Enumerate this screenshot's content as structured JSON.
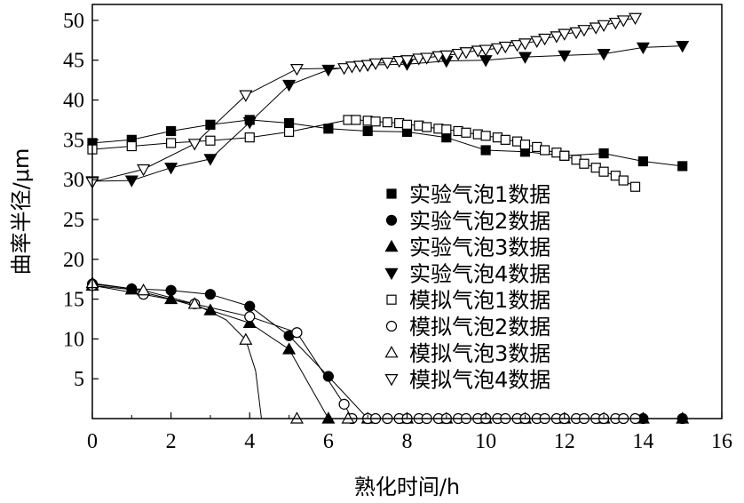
{
  "chart_data": {
    "type": "scatter",
    "xlabel": "熟化时间/h",
    "ylabel": "曲率半径/μm",
    "xlim": [
      0,
      16
    ],
    "ylim": [
      0,
      52
    ],
    "xticks": [
      "0",
      "2",
      "4",
      "6",
      "8",
      "10",
      "12",
      "14",
      "16"
    ],
    "yticks": [
      "5",
      "10",
      "15",
      "20",
      "25",
      "30",
      "35",
      "40",
      "45",
      "50"
    ],
    "legend_position": "right",
    "series": [
      {
        "name": "实验气泡1数据",
        "marker": "square-filled",
        "x": [
          0,
          1,
          2,
          3,
          4,
          5,
          6,
          7,
          8,
          9,
          10,
          11,
          12,
          13,
          14,
          15
        ],
        "y": [
          34.6,
          35.0,
          36.1,
          36.9,
          37.5,
          37.1,
          36.4,
          36.1,
          36.0,
          35.3,
          33.7,
          33.5,
          33.0,
          33.3,
          32.3,
          31.7
        ]
      },
      {
        "name": "实验气泡2数据",
        "marker": "circle-filled",
        "x": [
          0,
          1,
          2,
          3,
          4,
          5,
          6,
          7,
          8,
          9,
          10,
          11,
          12,
          13,
          14,
          15
        ],
        "y": [
          16.9,
          16.3,
          16.1,
          15.6,
          14.1,
          10.4,
          5.3,
          0,
          0,
          0,
          0,
          0,
          0,
          0,
          0,
          0
        ]
      },
      {
        "name": "实验气泡3数据",
        "marker": "triangle-up-filled",
        "x": [
          0,
          1,
          2,
          3,
          4,
          5,
          6,
          7,
          8,
          9,
          10,
          11,
          12,
          13,
          14,
          15
        ],
        "y": [
          16.7,
          16.2,
          15.0,
          13.6,
          12.0,
          8.7,
          0,
          0,
          0,
          0,
          0,
          0,
          0,
          0,
          0,
          0
        ]
      },
      {
        "name": "实验气泡4数据",
        "marker": "triangle-down-filled",
        "x": [
          0,
          1,
          2,
          3,
          4,
          5,
          6,
          7,
          8,
          9,
          10,
          11,
          12,
          13,
          14,
          15
        ],
        "y": [
          29.8,
          29.9,
          31.5,
          32.6,
          37.2,
          41.9,
          43.8,
          44.4,
          44.5,
          44.9,
          45.0,
          45.4,
          45.6,
          45.8,
          46.6,
          46.8
        ]
      },
      {
        "name": "模拟气泡1数据",
        "marker": "square-open",
        "x": [
          0,
          1,
          2,
          3,
          4,
          5,
          6.5,
          6.7,
          7,
          7.2,
          7.5,
          7.8,
          8,
          8.3,
          8.5,
          8.8,
          9,
          9.3,
          9.5,
          9.8,
          10,
          10.3,
          10.5,
          10.8,
          11,
          11.3,
          11.5,
          11.8,
          12,
          12.3,
          12.5,
          12.8,
          13,
          13.3,
          13.5,
          13.8
        ],
        "y": [
          33.8,
          34.2,
          34.6,
          34.9,
          35.3,
          36.0,
          37.5,
          37.5,
          37.4,
          37.3,
          37.2,
          37.1,
          36.9,
          36.8,
          36.6,
          36.4,
          36.3,
          36.1,
          35.9,
          35.7,
          35.5,
          35.3,
          35.0,
          34.8,
          34.4,
          34.1,
          33.7,
          33.4,
          33.0,
          32.5,
          32.0,
          31.5,
          31.0,
          30.5,
          29.9,
          29.1
        ]
      },
      {
        "name": "模拟气泡2数据",
        "marker": "circle-open",
        "x": [
          0,
          1.3,
          2.6,
          4.0,
          5.2,
          6.4,
          6.6,
          7,
          7.2,
          7.5,
          7.8,
          8,
          8.3,
          8.5,
          8.8,
          9,
          9.3,
          9.5,
          9.8,
          10,
          10.3,
          10.5,
          10.8,
          11,
          11.3,
          11.5,
          11.8,
          12,
          12.3,
          12.5,
          12.8,
          13,
          13.3,
          13.5,
          13.8
        ],
        "y": [
          16.7,
          15.6,
          14.4,
          12.8,
          10.8,
          1.8,
          0,
          0,
          0,
          0,
          0,
          0,
          0,
          0,
          0,
          0,
          0,
          0,
          0,
          0,
          0,
          0,
          0,
          0,
          0,
          0,
          0,
          0,
          0,
          0,
          0,
          0,
          0,
          0,
          0
        ]
      },
      {
        "name": "模拟气泡3数据",
        "marker": "triangle-up-open",
        "x": [
          0,
          1.3,
          2.6,
          3.9,
          5.2,
          6.5
        ],
        "y": [
          17.0,
          16.1,
          14.4,
          9.9,
          0,
          0
        ]
      },
      {
        "name": "模拟气泡4数据",
        "marker": "triangle-down-open",
        "x": [
          0,
          1.3,
          2.6,
          3.9,
          5.2,
          6.4,
          6.6,
          6.8,
          7,
          7.2,
          7.5,
          7.8,
          8,
          8.3,
          8.5,
          8.8,
          9,
          9.3,
          9.5,
          9.8,
          10,
          10.3,
          10.5,
          10.8,
          11,
          11.3,
          11.5,
          11.8,
          12,
          12.3,
          12.5,
          12.8,
          13,
          13.3,
          13.5,
          13.8
        ],
        "y": [
          29.7,
          31.3,
          34.5,
          40.6,
          43.9,
          44.0,
          44.2,
          44.3,
          44.4,
          44.6,
          44.7,
          44.9,
          45.0,
          45.2,
          45.3,
          45.5,
          45.6,
          45.8,
          46.0,
          46.2,
          46.3,
          46.5,
          46.7,
          46.9,
          47.1,
          47.4,
          47.7,
          48.0,
          48.3,
          48.5,
          48.8,
          49.1,
          49.4,
          49.7,
          50.0,
          50.3
        ]
      }
    ]
  }
}
